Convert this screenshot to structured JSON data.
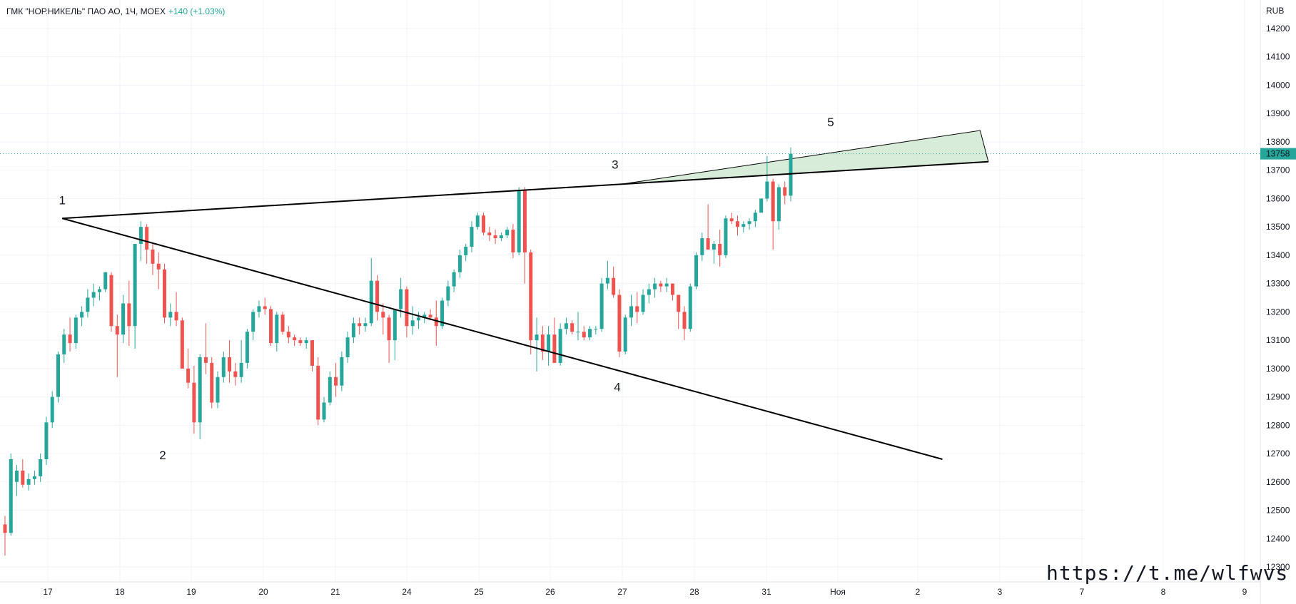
{
  "header": {
    "symbol": "ГМК \"НОР.НИКЕЛЬ\" ПАО АО, 1Ч, MOEX",
    "change": "+140 (+1.03%)"
  },
  "currency": "RUB",
  "watermark": "https://t.me/wlfwvs",
  "colors": {
    "up": "#26a69a",
    "down": "#ef5350",
    "grid": "#f0f3fa",
    "line": "#000000",
    "fill": "#c8e6c9"
  },
  "chart_data": {
    "type": "candlestick",
    "y_ticks": [
      14200,
      14100,
      14000,
      13900,
      13800,
      13700,
      13600,
      13500,
      13400,
      13300,
      13200,
      13100,
      13000,
      12900,
      12800,
      12700,
      12600,
      12500,
      12400,
      12300
    ],
    "y_range": [
      12250,
      14250
    ],
    "x_ticks": [
      "17",
      "18",
      "19",
      "20",
      "21",
      "24",
      "25",
      "26",
      "27",
      "28",
      "31",
      "Ноя",
      "2",
      "3",
      "7",
      "8",
      "9"
    ],
    "last_price": 13758,
    "candles_ohlc": [
      [
        12450,
        12480,
        12340,
        12420
      ],
      [
        12420,
        12700,
        12410,
        12680
      ],
      [
        12600,
        12660,
        12550,
        12640
      ],
      [
        12640,
        12680,
        12580,
        12590
      ],
      [
        12590,
        12630,
        12570,
        12610
      ],
      [
        12610,
        12640,
        12590,
        12620
      ],
      [
        12620,
        12700,
        12600,
        12680
      ],
      [
        12680,
        12830,
        12660,
        12810
      ],
      [
        12810,
        12920,
        12790,
        12900
      ],
      [
        12900,
        13060,
        12880,
        13050
      ],
      [
        13050,
        13140,
        13020,
        13120
      ],
      [
        13120,
        13180,
        13060,
        13090
      ],
      [
        13090,
        13190,
        13070,
        13180
      ],
      [
        13180,
        13220,
        13150,
        13200
      ],
      [
        13200,
        13280,
        13180,
        13250
      ],
      [
        13250,
        13300,
        13220,
        13270
      ],
      [
        13270,
        13290,
        13240,
        13280
      ],
      [
        13280,
        13340,
        13270,
        13340
      ],
      [
        13330,
        13340,
        13130,
        13150
      ],
      [
        13150,
        13190,
        12970,
        13120
      ],
      [
        13120,
        13260,
        13090,
        13230
      ],
      [
        13230,
        13310,
        13080,
        13150
      ],
      [
        13150,
        13440,
        13070,
        13440
      ],
      [
        13440,
        13520,
        13380,
        13500
      ],
      [
        13500,
        13510,
        13370,
        13420
      ],
      [
        13420,
        13440,
        13330,
        13370
      ],
      [
        13370,
        13410,
        13280,
        13350
      ],
      [
        13350,
        13370,
        13160,
        13180
      ],
      [
        13180,
        13230,
        13150,
        13200
      ],
      [
        13200,
        13270,
        13150,
        13170
      ],
      [
        13170,
        13180,
        13000,
        13000
      ],
      [
        13000,
        13070,
        12930,
        12950
      ],
      [
        12950,
        13010,
        12770,
        12810
      ],
      [
        12810,
        13050,
        12750,
        13040
      ],
      [
        13040,
        13160,
        12980,
        13020
      ],
      [
        13020,
        13040,
        12860,
        12880
      ],
      [
        12880,
        12990,
        12860,
        12970
      ],
      [
        12970,
        13060,
        12950,
        13040
      ],
      [
        13040,
        13100,
        12950,
        12990
      ],
      [
        12990,
        13020,
        12940,
        12970
      ],
      [
        12970,
        13100,
        12950,
        13020
      ],
      [
        13020,
        13140,
        13000,
        13130
      ],
      [
        13130,
        13210,
        13100,
        13200
      ],
      [
        13200,
        13240,
        13180,
        13220
      ],
      [
        13220,
        13250,
        13190,
        13210
      ],
      [
        13210,
        13220,
        13080,
        13090
      ],
      [
        13090,
        13200,
        13060,
        13190
      ],
      [
        13190,
        13200,
        13120,
        13130
      ],
      [
        13130,
        13150,
        13090,
        13110
      ],
      [
        13110,
        13120,
        13080,
        13100
      ],
      [
        13100,
        13110,
        13080,
        13090
      ],
      [
        13090,
        13110,
        13070,
        13100
      ],
      [
        13100,
        13080,
        12990,
        13010
      ],
      [
        13010,
        13040,
        12800,
        12820
      ],
      [
        12820,
        12900,
        12810,
        12880
      ],
      [
        12880,
        12990,
        12870,
        12970
      ],
      [
        12970,
        13020,
        12900,
        12940
      ],
      [
        12940,
        13060,
        12920,
        13040
      ],
      [
        13040,
        13130,
        13020,
        13110
      ],
      [
        13110,
        13180,
        13090,
        13160
      ],
      [
        13160,
        13180,
        13120,
        13150
      ],
      [
        13150,
        13180,
        13130,
        13160
      ],
      [
        13160,
        13390,
        13150,
        13310
      ],
      [
        13310,
        13330,
        13170,
        13200
      ],
      [
        13200,
        13230,
        13120,
        13180
      ],
      [
        13180,
        13190,
        13020,
        13100
      ],
      [
        13100,
        13200,
        13030,
        13210
      ],
      [
        13210,
        13320,
        13180,
        13280
      ],
      [
        13280,
        13290,
        13110,
        13150
      ],
      [
        13150,
        13220,
        13120,
        13170
      ],
      [
        13170,
        13200,
        13140,
        13180
      ],
      [
        13180,
        13200,
        13160,
        13190
      ],
      [
        13190,
        13210,
        13170,
        13180
      ],
      [
        13180,
        13240,
        13080,
        13150
      ],
      [
        13150,
        13250,
        13140,
        13240
      ],
      [
        13240,
        13310,
        13220,
        13290
      ],
      [
        13290,
        13350,
        13270,
        13340
      ],
      [
        13340,
        13420,
        13320,
        13400
      ],
      [
        13400,
        13440,
        13380,
        13430
      ],
      [
        13430,
        13520,
        13410,
        13500
      ],
      [
        13500,
        13550,
        13490,
        13540
      ],
      [
        13540,
        13550,
        13470,
        13480
      ],
      [
        13480,
        13500,
        13450,
        13470
      ],
      [
        13470,
        13490,
        13440,
        13460
      ],
      [
        13460,
        13480,
        13450,
        13470
      ],
      [
        13470,
        13500,
        13460,
        13490
      ],
      [
        13490,
        13510,
        13390,
        13410
      ],
      [
        13410,
        13640,
        13400,
        13630
      ],
      [
        13630,
        13640,
        13300,
        13410
      ],
      [
        13410,
        13420,
        13050,
        13100
      ],
      [
        13100,
        13180,
        12990,
        13120
      ],
      [
        13120,
        13150,
        13030,
        13060
      ],
      [
        13060,
        13150,
        13010,
        13120
      ],
      [
        13120,
        13180,
        13020,
        13020
      ],
      [
        13020,
        13160,
        13010,
        13140
      ],
      [
        13140,
        13180,
        13120,
        13160
      ],
      [
        13160,
        13170,
        13120,
        13130
      ],
      [
        13130,
        13200,
        13100,
        13130
      ],
      [
        13130,
        13150,
        13100,
        13110
      ],
      [
        13110,
        13150,
        13100,
        13140
      ],
      [
        13140,
        13150,
        13120,
        13140
      ],
      [
        13140,
        13320,
        13130,
        13300
      ],
      [
        13300,
        13380,
        13280,
        13320
      ],
      [
        13320,
        13360,
        13250,
        13260
      ],
      [
        13260,
        13280,
        13040,
        13060
      ],
      [
        13060,
        13190,
        13050,
        13180
      ],
      [
        13180,
        13260,
        13150,
        13220
      ],
      [
        13220,
        13270,
        13160,
        13200
      ],
      [
        13200,
        13280,
        13190,
        13260
      ],
      [
        13260,
        13300,
        13230,
        13280
      ],
      [
        13280,
        13320,
        13250,
        13300
      ],
      [
        13300,
        13310,
        13270,
        13290
      ],
      [
        13290,
        13320,
        13270,
        13300
      ],
      [
        13300,
        13300,
        13240,
        13260
      ],
      [
        13260,
        13260,
        13140,
        13200
      ],
      [
        13200,
        13220,
        13100,
        13140
      ],
      [
        13140,
        13300,
        13130,
        13290
      ],
      [
        13290,
        13410,
        13280,
        13400
      ],
      [
        13400,
        13480,
        13380,
        13460
      ],
      [
        13460,
        13580,
        13440,
        13420
      ],
      [
        13420,
        13450,
        13370,
        13440
      ],
      [
        13440,
        13490,
        13360,
        13400
      ],
      [
        13400,
        13540,
        13390,
        13530
      ],
      [
        13530,
        13550,
        13510,
        13520
      ],
      [
        13520,
        13540,
        13470,
        13500
      ],
      [
        13500,
        13520,
        13480,
        13510
      ],
      [
        13510,
        13530,
        13490,
        13520
      ],
      [
        13520,
        13560,
        13500,
        13550
      ],
      [
        13550,
        13600,
        13590,
        13600
      ],
      [
        13600,
        13750,
        13590,
        13660
      ],
      [
        13660,
        13670,
        13420,
        13520
      ],
      [
        13520,
        13650,
        13490,
        13640
      ],
      [
        13640,
        13660,
        13580,
        13610
      ],
      [
        13610,
        13780,
        13590,
        13758
      ]
    ],
    "trendlines": [
      {
        "from": [
          0.2,
          13530
        ],
        "to": [
          12.3,
          12680
        ]
      },
      {
        "from": [
          0.2,
          13530
        ],
        "to": [
          12.86,
          13730
        ]
      }
    ],
    "wedge_fill": [
      [
        7.97,
        13650
      ],
      [
        12.86,
        13730
      ],
      [
        12.76,
        13840
      ]
    ],
    "wave_labels": [
      {
        "text": "1",
        "x": 0.2,
        "price": 13580
      },
      {
        "text": "2",
        "x": 1.6,
        "price": 12680
      },
      {
        "text": "3",
        "x": 7.9,
        "price": 13705
      },
      {
        "text": "4",
        "x": 7.93,
        "price": 12920
      },
      {
        "text": "5",
        "x": 10.9,
        "price": 13855
      }
    ]
  }
}
